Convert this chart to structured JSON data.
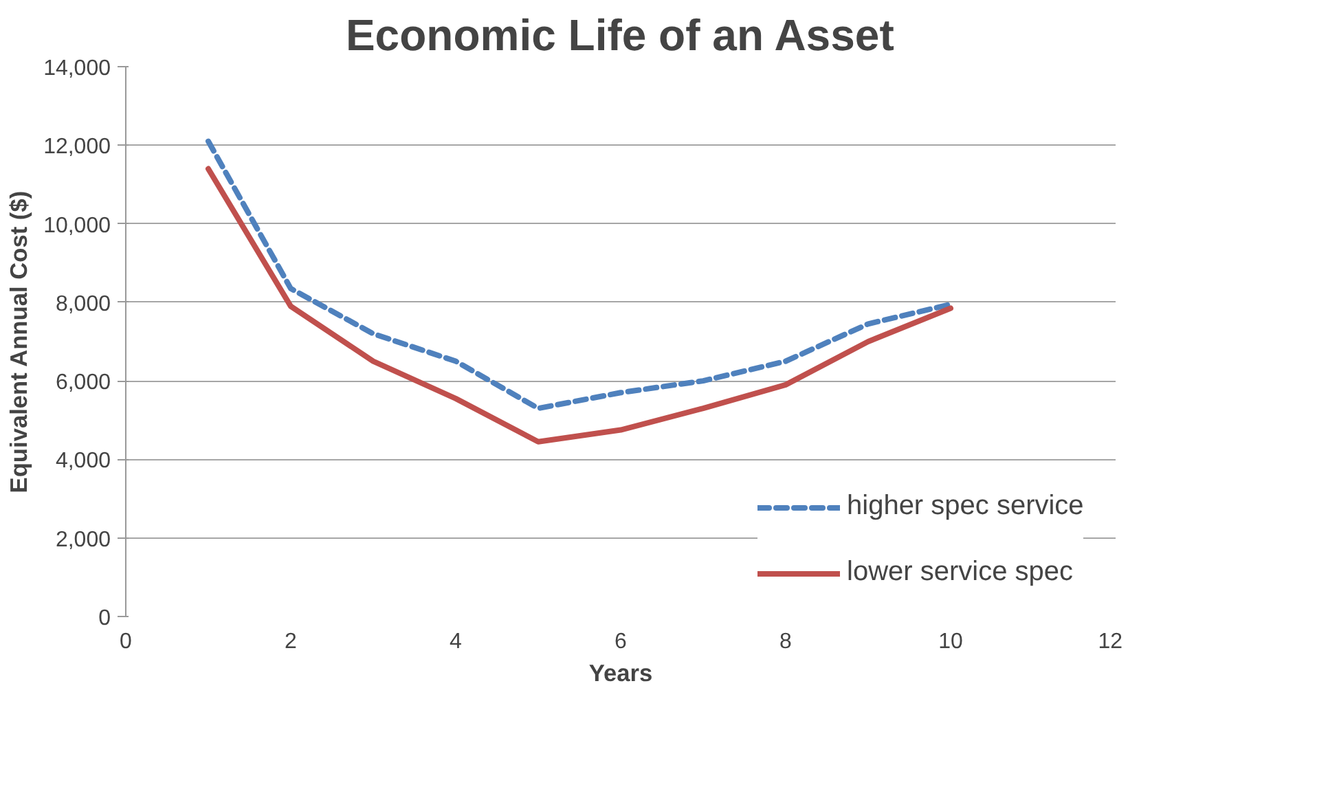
{
  "chart_data": {
    "type": "line",
    "title": "Economic Life of an Asset",
    "xlabel": "Years",
    "ylabel": "Equivalent Annual Cost ($)",
    "x": [
      1,
      2,
      3,
      4,
      5,
      6,
      7,
      8,
      9,
      10
    ],
    "series": [
      {
        "name": "higher spec service",
        "color": "#4f81bd",
        "line_style": "dashed",
        "values": [
          12100,
          8350,
          7200,
          6500,
          5300,
          5700,
          6000,
          6500,
          7450,
          7950
        ]
      },
      {
        "name": "lower service spec",
        "color": "#c0504d",
        "line_style": "solid",
        "values": [
          11400,
          7900,
          6500,
          5550,
          4450,
          4750,
          5300,
          5900,
          7000,
          7850
        ]
      }
    ],
    "xlim": [
      0,
      12
    ],
    "xticks": [
      0,
      2,
      4,
      6,
      8,
      10,
      12
    ],
    "ylim": [
      0,
      14000
    ],
    "yticks": [
      {
        "value": 0,
        "label": "0"
      },
      {
        "value": 2000,
        "label": "2,000"
      },
      {
        "value": 4000,
        "label": "4,000"
      },
      {
        "value": 6000,
        "label": "6,000"
      },
      {
        "value": 8000,
        "label": "8,000"
      },
      {
        "value": 10000,
        "label": "10,000"
      },
      {
        "value": 12000,
        "label": "12,000"
      },
      {
        "value": 14000,
        "label": "14,000"
      }
    ],
    "grid": "y",
    "legend": "right",
    "marker": "none"
  }
}
